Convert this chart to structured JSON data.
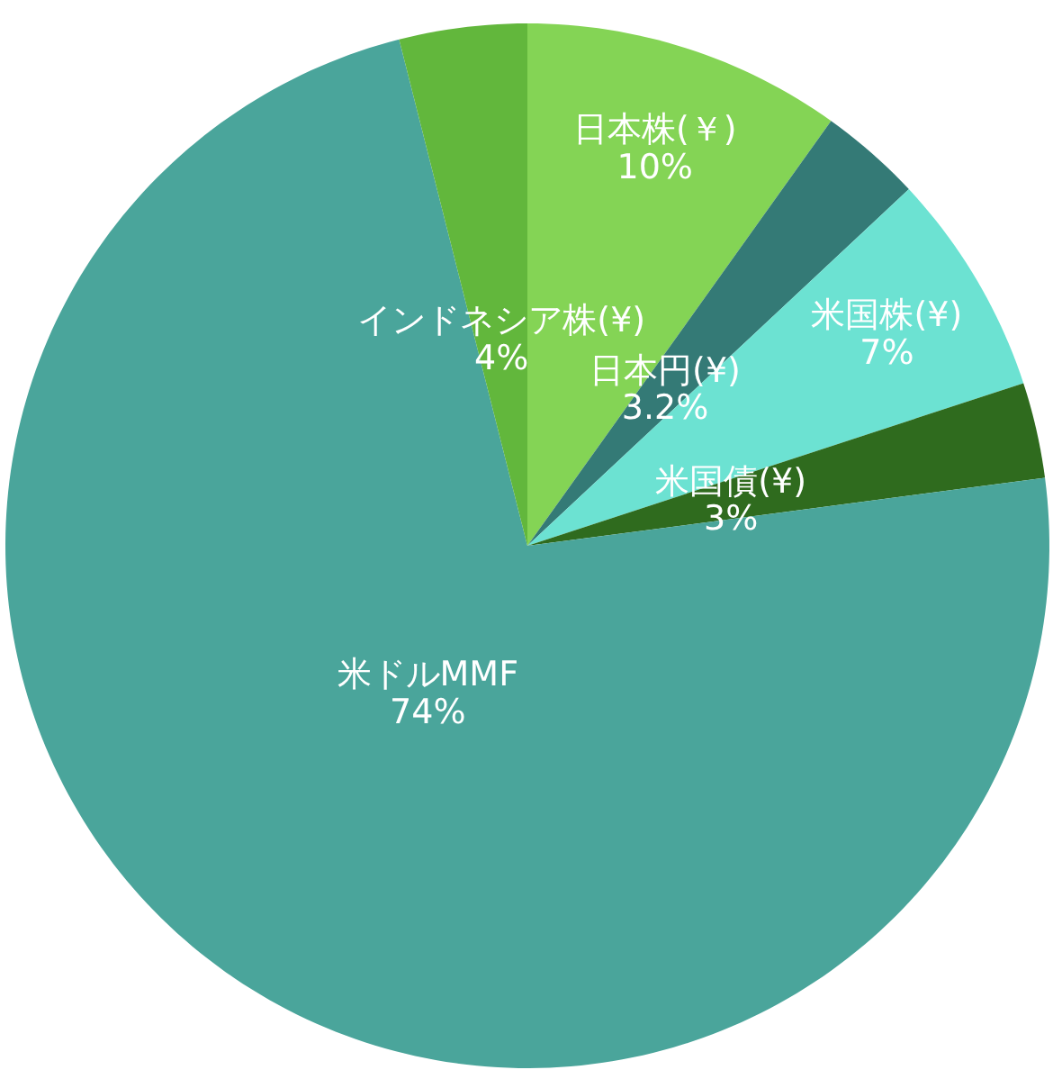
{
  "chart_data": {
    "type": "pie",
    "categories": [
      "日本株(￥)",
      "日本円(¥)",
      "米国株(¥)",
      "米国債(¥)",
      "米ドルMMF",
      "インドネシア株(¥)"
    ],
    "values": [
      10,
      3.2,
      7,
      3,
      74,
      4
    ],
    "colors": [
      "#84d455",
      "#347a76",
      "#6ce2d2",
      "#2f6b1e",
      "#4aa59b",
      "#62b73c"
    ],
    "value_labels": [
      "10%",
      "3.2%",
      "7%",
      "3%",
      "74%",
      "4%"
    ]
  }
}
